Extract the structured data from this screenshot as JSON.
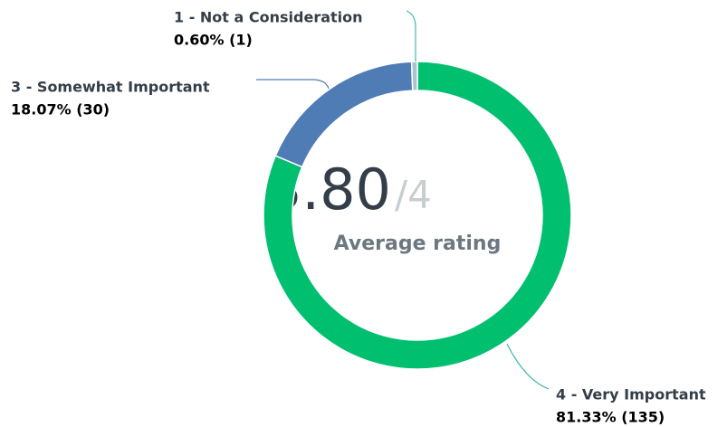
{
  "chart_data": {
    "type": "donut",
    "categories": [
      "4 - Very Important",
      "3 - Somewhat Important",
      "1 - Not a Consideration"
    ],
    "values": [
      81.33,
      18.07,
      0.6
    ],
    "value_labels": [
      "81.33% (135)",
      "18.07% (30)",
      "0.60% (1)"
    ],
    "colors": [
      "#00bf6f",
      "#507cb6",
      "#a9c4cf"
    ],
    "center_value": "3.80",
    "center_suffix": "/4",
    "center_label": "Average rating"
  }
}
